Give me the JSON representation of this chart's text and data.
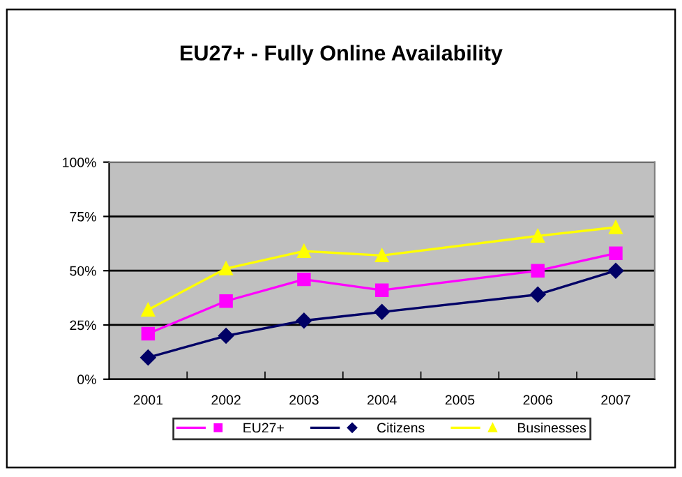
{
  "chart_data": {
    "type": "line",
    "title": "EU27+ - Fully Online Availability",
    "categories": [
      "2001",
      "2002",
      "2003",
      "2004",
      "2005",
      "2006",
      "2007"
    ],
    "series": [
      {
        "name": "EU27+",
        "color": "#ff00ff",
        "marker": "square",
        "values": [
          21,
          36,
          46,
          41,
          null,
          50,
          58
        ]
      },
      {
        "name": "Citizens",
        "color": "#000066",
        "marker": "diamond",
        "values": [
          10,
          20,
          27,
          31,
          null,
          39,
          50
        ]
      },
      {
        "name": "Businesses",
        "color": "#ffff00",
        "marker": "triangle",
        "values": [
          32,
          51,
          59,
          57,
          null,
          66,
          70
        ]
      }
    ],
    "ylim": [
      0,
      100
    ],
    "yticks": [
      {
        "value": 0,
        "label": "0%"
      },
      {
        "value": 25,
        "label": "25%"
      },
      {
        "value": 50,
        "label": "50%"
      },
      {
        "value": 75,
        "label": "75%"
      },
      {
        "value": 100,
        "label": "100%"
      }
    ],
    "grid": "y",
    "legend": "bottom",
    "line_style": "solid"
  }
}
